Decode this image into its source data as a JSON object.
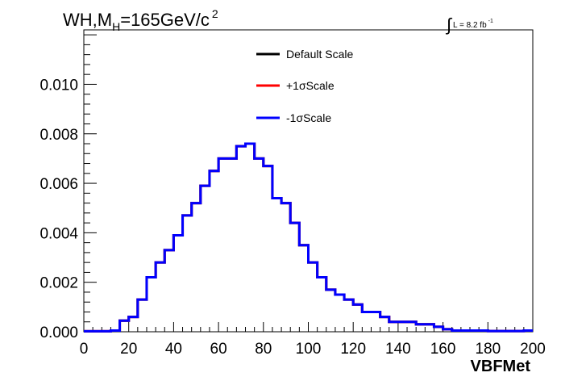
{
  "title": {
    "prefix": "WH,M",
    "subscript": "H",
    "suffix": "=165GeV/c",
    "superscript": "2"
  },
  "luminosity": {
    "symbol": "∫",
    "text": "L = 8.2 fb",
    "superscript": "-1"
  },
  "colors": {
    "default": "#000000",
    "plus": "#ff0000",
    "minus": "#0000ff"
  },
  "chart_data": {
    "type": "line",
    "subtype": "step-histogram",
    "xlabel": "VBFMet",
    "ylabel": "",
    "xlim": [
      0,
      200
    ],
    "ylim": [
      0,
      0.0122
    ],
    "x_ticks": [
      0,
      20,
      40,
      60,
      80,
      100,
      120,
      140,
      160,
      180,
      200
    ],
    "y_ticks": [
      0.0,
      0.002,
      0.004,
      0.006,
      0.008,
      0.01
    ],
    "y_tick_labels": [
      "0.000",
      "0.002",
      "0.004",
      "0.006",
      "0.008",
      "0.010"
    ],
    "legend_position": "top-right",
    "bin_edges": [
      0,
      4,
      8,
      12,
      16,
      20,
      24,
      28,
      32,
      36,
      40,
      44,
      48,
      52,
      56,
      60,
      64,
      68,
      72,
      76,
      80,
      84,
      88,
      92,
      96,
      100,
      104,
      108,
      112,
      116,
      120,
      124,
      128,
      132,
      136,
      140,
      144,
      148,
      152,
      156,
      160,
      164,
      168,
      172,
      176,
      180,
      184,
      188,
      192,
      196,
      200
    ],
    "series": [
      {
        "name": "Default Scale",
        "color": "#000000",
        "values": [
          2e-05,
          2e-05,
          2e-05,
          5e-05,
          0.00045,
          0.0006,
          0.0013,
          0.0022,
          0.0028,
          0.0033,
          0.0039,
          0.0047,
          0.0052,
          0.0059,
          0.0065,
          0.007,
          0.007,
          0.0075,
          0.0076,
          0.007,
          0.0067,
          0.0054,
          0.0052,
          0.0044,
          0.0035,
          0.0028,
          0.0022,
          0.0017,
          0.0015,
          0.0013,
          0.0011,
          0.0008,
          0.0008,
          0.0006,
          0.0004,
          0.0004,
          0.0004,
          0.0003,
          0.0003,
          0.0002,
          0.0001,
          5e-05,
          5e-05,
          5e-05,
          5e-05,
          3e-05,
          3e-05,
          3e-05,
          3e-05,
          5e-05
        ]
      },
      {
        "name": "+1σScale",
        "color": "#ff0000",
        "values": [
          2e-05,
          2e-05,
          2e-05,
          5e-05,
          0.00045,
          0.0006,
          0.0013,
          0.0022,
          0.0028,
          0.0033,
          0.0039,
          0.0047,
          0.0052,
          0.0059,
          0.0065,
          0.007,
          0.007,
          0.0075,
          0.0076,
          0.007,
          0.0067,
          0.0054,
          0.0052,
          0.0044,
          0.0035,
          0.0028,
          0.0022,
          0.0017,
          0.0015,
          0.0013,
          0.0011,
          0.0008,
          0.0008,
          0.0006,
          0.0004,
          0.0004,
          0.0004,
          0.0003,
          0.0003,
          0.0002,
          0.0001,
          5e-05,
          5e-05,
          5e-05,
          5e-05,
          3e-05,
          3e-05,
          3e-05,
          3e-05,
          5e-05
        ]
      },
      {
        "name": "-1σScale",
        "color": "#0000ff",
        "values": [
          2e-05,
          2e-05,
          2e-05,
          5e-05,
          0.00045,
          0.0006,
          0.0013,
          0.0022,
          0.0028,
          0.0033,
          0.0039,
          0.0047,
          0.0052,
          0.0059,
          0.0065,
          0.007,
          0.007,
          0.0075,
          0.0076,
          0.007,
          0.0067,
          0.0054,
          0.0052,
          0.0044,
          0.0035,
          0.0028,
          0.0022,
          0.0017,
          0.0015,
          0.0013,
          0.0011,
          0.0008,
          0.0008,
          0.0006,
          0.0004,
          0.0004,
          0.0004,
          0.0003,
          0.0003,
          0.0002,
          0.0001,
          5e-05,
          5e-05,
          5e-05,
          5e-05,
          3e-05,
          3e-05,
          3e-05,
          3e-05,
          5e-05
        ]
      }
    ]
  }
}
